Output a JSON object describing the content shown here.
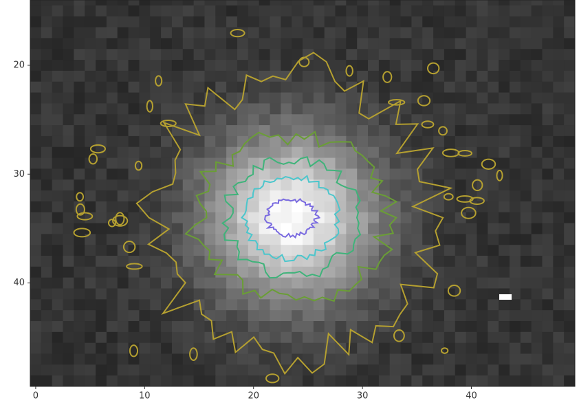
{
  "chart_data": {
    "type": "image",
    "xlim": [
      -0.5,
      49.5
    ],
    "ylim": [
      49.5,
      14
    ],
    "xticks": [
      0,
      10,
      20,
      30,
      40
    ],
    "yticks": [
      20,
      30,
      40
    ]
  }
}
